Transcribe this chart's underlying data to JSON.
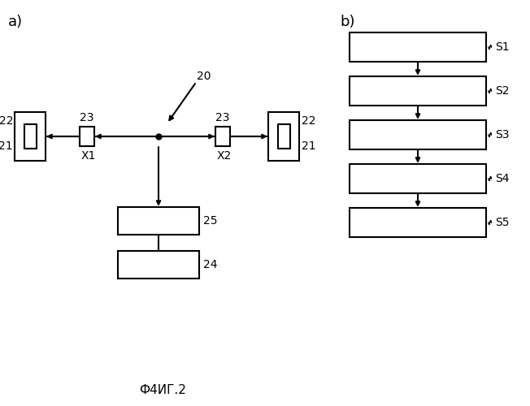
{
  "bg_color": "#ffffff",
  "fig_width": 6.52,
  "fig_height": 5.0,
  "dpi": 100,
  "caption": "Ф4ИГ.2",
  "label_a": "a)",
  "label_b": "b)",
  "steps": [
    "S1",
    "S2",
    "S3",
    "S4",
    "S5"
  ],
  "a_labels": {
    "20": "20",
    "22": "22",
    "21": "21",
    "23": "23",
    "X1": "X1",
    "X2": "X2",
    "25": "25",
    "24": "24"
  }
}
